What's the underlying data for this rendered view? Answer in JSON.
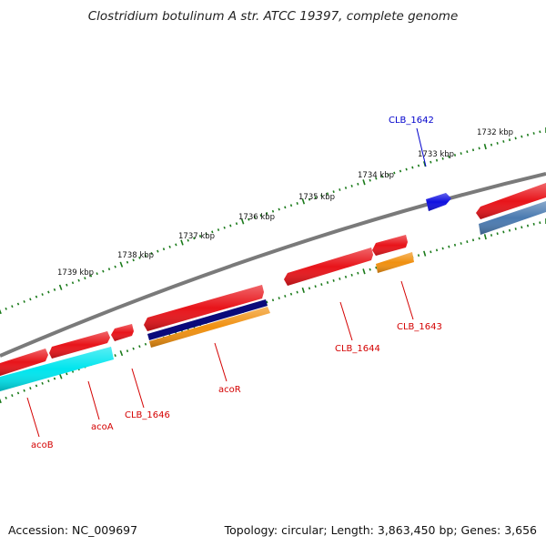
{
  "header": {
    "title": "Clostridium botulinum A str. ATCC 19397, complete genome"
  },
  "footer": {
    "accession": "Accession: NC_009697",
    "topology": "Topology: circular; Length: 3,863,450 bp; Genes: 3,656"
  },
  "colors": {
    "backbone": "#7a7a7a",
    "ruler": "#1a7a1a",
    "gene_red": "#e8141a",
    "gene_cyan": "#00e5ee",
    "gene_navy": "#0a0a7a",
    "gene_orange": "#f09010",
    "gene_blue": "#1010e0",
    "gene_steel": "#4a7ab0",
    "label_red": "#d40000",
    "label_blue": "#0000cc"
  },
  "ruler": {
    "labels": [
      "1732 kbp",
      "1733 kbp",
      "1734 kbp",
      "1735 kbp",
      "1736 kbp",
      "1737 kbp",
      "1738 kbp",
      "1739 kbp"
    ]
  },
  "genes": [
    {
      "label": "acoB",
      "color": "label_red"
    },
    {
      "label": "acoA",
      "color": "label_red"
    },
    {
      "label": "CLB_1646",
      "color": "label_red"
    },
    {
      "label": "acoR",
      "color": "label_red"
    },
    {
      "label": "CLB_1644",
      "color": "label_red"
    },
    {
      "label": "CLB_1643",
      "color": "label_red"
    },
    {
      "label": "CLB_1642",
      "color": "label_blue"
    }
  ]
}
